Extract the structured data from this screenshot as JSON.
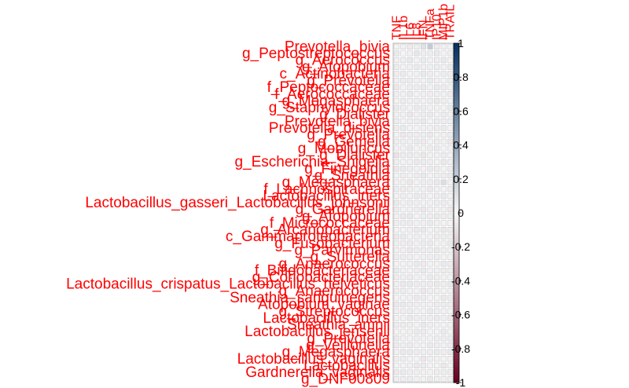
{
  "chart_data": {
    "type": "heatmap",
    "title": "",
    "columns": [
      "TNF",
      "IL1b",
      "IL6",
      "IL8",
      "IFN",
      "TNFa",
      "IP10",
      "MIP1b",
      "TRAIL"
    ],
    "rows": [
      "Prevotella_bivia",
      "g_Peptostreptococcus",
      "g_Aerococcus",
      "g_Atopobium",
      "c_Actinobacteria",
      "g_Prevotella",
      "f_Peptococcaceae",
      "f_Aerococcaceae",
      "g_Megasphaera",
      "g_Staphylococcus",
      "g_Dialister",
      "Prevotella_bivia",
      "Prevotella_disiens",
      "g_Prevotella",
      "g_Gemella",
      "g_Mobiluncus",
      "g_Dialister",
      "g_Escherichia_Shigella",
      "g_Finegoldia",
      "g_Sneathia",
      "g_Megasphaera",
      "f_Lachnospiraceae",
      "Lactobacillus_iners",
      "Lactobacillus_gasseri_Lactobacillus_johnsonii",
      "g_Gardnerella",
      "g_Atopobium",
      "f_Micrococcaceae",
      "g_Arcanobacterium",
      "c_Gammaproteobacteria",
      "g_Fusobacterium",
      "g_Parvimonas",
      "g_Sutterella",
      "g_Anaerococcus",
      "f_Bifidobacteriaceae",
      "g_Coriobacteriaceae",
      "Lactobacillus_crispatus_Lactobacillus_helveticus",
      "g_Anaerococcus",
      "Sneathia_sanguinegens",
      "Atopobium_vaginae",
      "g_Streptococcus",
      "Lactobacillus_iners",
      "Sneathia_amnii",
      "Lactobacillus_jensenii",
      "g_Prevotella",
      "g_Veillonella",
      "g_Megasphaera",
      "Lactobacillus_vaginalis",
      "Lactobacillus",
      "Gardnerella_vaginalis",
      "g_DNF00809"
    ],
    "values": [
      [
        -0.02,
        0.03,
        -0.05,
        0.04,
        0.1,
        0.22,
        -0.05,
        0.03,
        0.02
      ],
      [
        0.06,
        0.01,
        -0.03,
        0.08,
        -0.04,
        0.05,
        0.07,
        -0.02,
        0.04
      ],
      [
        -0.03,
        0.04,
        0.06,
        -0.02,
        0.05,
        0.03,
        -0.04,
        0.06,
        -0.02
      ],
      [
        0.05,
        -0.02,
        0.03,
        0.06,
        -0.03,
        0.04,
        0.05,
        -0.03,
        0.06
      ],
      [
        -0.04,
        0.06,
        -0.02,
        0.03,
        0.06,
        -0.05,
        0.02,
        0.05,
        -0.04
      ],
      [
        0.03,
        -0.05,
        0.05,
        -0.03,
        0.02,
        0.06,
        -0.03,
        0.02,
        0.05
      ],
      [
        -0.06,
        0.02,
        -0.04,
        0.05,
        -0.06,
        0.03,
        0.06,
        -0.05,
        0.03
      ],
      [
        0.04,
        -0.03,
        0.06,
        -0.02,
        0.03,
        -0.04,
        0.04,
        0.03,
        -0.05
      ],
      [
        -0.02,
        0.05,
        -0.03,
        0.04,
        -0.02,
        0.05,
        -0.06,
        0.04,
        0.02
      ],
      [
        0.06,
        -0.04,
        0.02,
        -0.06,
        0.05,
        -0.03,
        0.03,
        -0.02,
        0.06
      ],
      [
        -0.03,
        0.03,
        -0.06,
        0.03,
        -0.04,
        0.06,
        -0.02,
        0.05,
        -0.03
      ],
      [
        0.05,
        -0.02,
        0.04,
        -0.05,
        0.06,
        -0.02,
        0.05,
        -0.04,
        0.04
      ],
      [
        -0.05,
        0.06,
        -0.02,
        0.02,
        -0.03,
        0.04,
        -0.05,
        0.06,
        -0.02
      ],
      [
        0.02,
        -0.06,
        0.05,
        -0.04,
        0.04,
        -0.06,
        0.02,
        -0.03,
        0.05
      ],
      [
        -0.04,
        0.04,
        -0.03,
        0.06,
        -0.05,
        0.02,
        -0.04,
        0.03,
        -0.06
      ],
      [
        0.03,
        -0.03,
        0.06,
        -0.02,
        0.02,
        -0.05,
        0.06,
        -0.02,
        0.03
      ],
      [
        -0.08,
        0.05,
        -0.05,
        0.04,
        -0.06,
        0.03,
        -0.03,
        0.05,
        -0.02
      ],
      [
        0.04,
        -0.02,
        0.03,
        -0.06,
        0.05,
        -0.04,
        0.02,
        -0.06,
        0.04
      ],
      [
        -0.06,
        0.06,
        -0.04,
        0.03,
        -0.02,
        0.06,
        -0.05,
        0.02,
        -0.05
      ],
      [
        0.02,
        -0.04,
        0.02,
        -0.05,
        0.06,
        -0.02,
        0.04,
        -0.04,
        0.06
      ],
      [
        -0.03,
        0.03,
        -0.06,
        0.02,
        -0.04,
        0.05,
        -0.06,
        0.12,
        -0.03
      ],
      [
        0.05,
        -0.05,
        0.04,
        -0.03,
        0.03,
        -0.06,
        0.03,
        -0.02,
        0.05
      ],
      [
        -0.02,
        0.04,
        -0.02,
        0.06,
        -0.05,
        0.02,
        -0.04,
        0.06,
        -0.02
      ],
      [
        0.06,
        -0.03,
        0.05,
        -0.04,
        0.02,
        -0.03,
        0.05,
        -0.05,
        0.03
      ],
      [
        -0.05,
        0.02,
        -0.03,
        0.05,
        -0.06,
        0.04,
        -0.02,
        0.03,
        -0.06
      ],
      [
        0.03,
        -0.06,
        0.06,
        -0.02,
        0.04,
        -0.05,
        0.06,
        -0.04,
        0.04
      ],
      [
        -0.04,
        0.05,
        -0.05,
        0.03,
        -0.03,
        0.06,
        -0.03,
        0.02,
        -0.02
      ],
      [
        0.02,
        -0.02,
        0.03,
        -0.06,
        0.06,
        -0.02,
        0.04,
        -0.06,
        0.05
      ],
      [
        -0.06,
        0.06,
        -0.02,
        0.04,
        -0.02,
        0.03,
        -0.05,
        0.05,
        -0.04
      ],
      [
        0.04,
        -0.04,
        0.05,
        -0.03,
        0.05,
        -0.06,
        0.02,
        -0.03,
        0.06
      ],
      [
        -0.03,
        0.03,
        -0.06,
        0.05,
        -0.04,
        0.05,
        -0.06,
        0.04,
        -0.03
      ],
      [
        0.05,
        -0.05,
        0.04,
        -0.02,
        0.03,
        -0.04,
        0.05,
        -0.02,
        0.02
      ],
      [
        -0.02,
        0.02,
        -0.03,
        0.06,
        -0.05,
        0.02,
        -0.02,
        0.06,
        -0.05
      ],
      [
        0.06,
        -0.03,
        0.02,
        -0.04,
        0.06,
        -0.03,
        0.03,
        -0.05,
        0.04
      ],
      [
        -0.05,
        0.04,
        -0.05,
        0.03,
        -0.02,
        0.06,
        -0.04,
        0.03,
        -0.02
      ],
      [
        0.03,
        -0.06,
        0.06,
        -0.05,
        0.04,
        -0.05,
        0.06,
        -0.04,
        0.06
      ],
      [
        -0.04,
        0.05,
        -0.02,
        0.02,
        -0.06,
        0.04,
        -0.03,
        0.02,
        -0.03
      ],
      [
        0.02,
        -0.02,
        0.03,
        -0.06,
        0.05,
        -0.02,
        0.02,
        -0.06,
        0.05
      ],
      [
        -0.06,
        0.06,
        -0.04,
        0.04,
        -0.03,
        0.03,
        -0.05,
        0.05,
        -0.04
      ],
      [
        0.04,
        -0.04,
        0.05,
        -0.03,
        0.02,
        -0.06,
        0.04,
        -0.03,
        0.02
      ],
      [
        -0.03,
        0.03,
        -0.06,
        0.05,
        -0.04,
        0.05,
        -0.06,
        0.04,
        -0.06
      ],
      [
        0.05,
        -0.05,
        0.04,
        -0.02,
        0.06,
        -0.04,
        0.03,
        -0.02,
        0.03
      ],
      [
        -0.02,
        0.02,
        -0.03,
        0.06,
        -0.05,
        0.02,
        -0.02,
        0.06,
        -0.02
      ],
      [
        0.06,
        -0.03,
        0.02,
        -0.04,
        0.03,
        -0.03,
        0.05,
        -0.05,
        0.05
      ],
      [
        -0.05,
        0.04,
        -0.05,
        0.03,
        -0.02,
        0.06,
        -0.04,
        0.03,
        -0.04
      ],
      [
        0.03,
        -0.06,
        0.06,
        -0.05,
        0.04,
        -0.05,
        0.06,
        -0.04,
        0.06
      ],
      [
        -0.04,
        0.05,
        -0.02,
        0.02,
        -0.06,
        0.04,
        -0.03,
        0.02,
        -0.03
      ],
      [
        0.02,
        -0.02,
        0.03,
        -0.06,
        0.05,
        -0.02,
        0.02,
        -0.06,
        0.02
      ],
      [
        -0.06,
        0.06,
        -0.04,
        0.04,
        -0.03,
        0.03,
        -0.05,
        0.05,
        -0.05
      ],
      [
        0.04,
        -0.04,
        0.05,
        -0.03,
        0.02,
        -0.06,
        0.04,
        -0.03,
        0.04
      ]
    ],
    "colorbar": {
      "ticks": [
        1,
        0.8,
        0.6,
        0.4,
        0.2,
        0,
        -0.2,
        -0.4,
        -0.6,
        -0.8,
        -1
      ],
      "tick_labels": [
        "1",
        "0.8",
        "0.6",
        "0.4",
        "0.2",
        "0",
        "-0.2",
        "-0.4",
        "-0.6",
        "-0.8",
        "-1"
      ],
      "range": [
        -1,
        1
      ],
      "high_color": "#053061",
      "mid_color": "#f7f7f7",
      "low_color": "#67001f"
    },
    "label_color": "#ff0000",
    "grid": true,
    "legend": "right"
  }
}
